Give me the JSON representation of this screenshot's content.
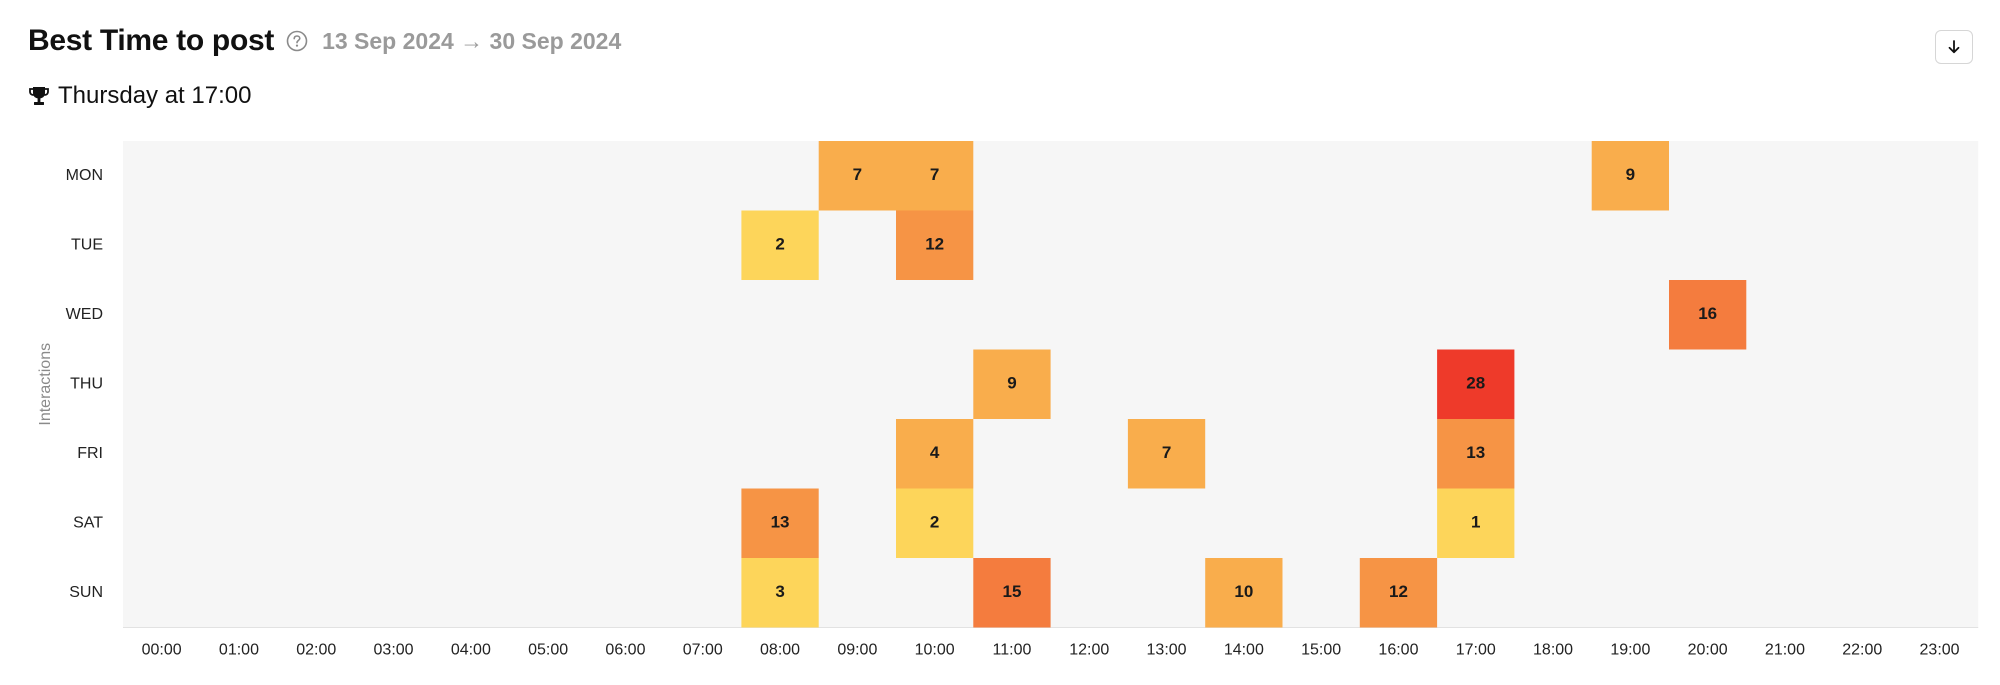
{
  "header": {
    "title": "Best Time to post",
    "date_range": "13 Sep 2024 → 30 Sep 2024"
  },
  "best_time": {
    "label": "Thursday at 17:00"
  },
  "icons": {
    "help": "question-circle-icon",
    "trophy": "trophy-icon",
    "download": "arrow-down-icon"
  },
  "colors": {
    "background": "#f6f6f6",
    "low": "#fdd55a",
    "mid": "#f9ad4c",
    "high": "#f47c3e",
    "max": "#ee3a2a"
  },
  "chart_data": {
    "type": "heatmap",
    "ylabel": "Interactions",
    "xlabel": "",
    "days": [
      "MON",
      "TUE",
      "WED",
      "THU",
      "FRI",
      "SAT",
      "SUN"
    ],
    "hours": [
      "00:00",
      "01:00",
      "02:00",
      "03:00",
      "04:00",
      "05:00",
      "06:00",
      "07:00",
      "08:00",
      "09:00",
      "10:00",
      "11:00",
      "12:00",
      "13:00",
      "14:00",
      "15:00",
      "16:00",
      "17:00",
      "18:00",
      "19:00",
      "20:00",
      "21:00",
      "22:00",
      "23:00"
    ],
    "cells": [
      {
        "day": "MON",
        "hour": "09:00",
        "value": 7
      },
      {
        "day": "MON",
        "hour": "10:00",
        "value": 7
      },
      {
        "day": "MON",
        "hour": "19:00",
        "value": 9
      },
      {
        "day": "TUE",
        "hour": "08:00",
        "value": 2
      },
      {
        "day": "TUE",
        "hour": "10:00",
        "value": 12
      },
      {
        "day": "WED",
        "hour": "20:00",
        "value": 16
      },
      {
        "day": "THU",
        "hour": "11:00",
        "value": 9
      },
      {
        "day": "THU",
        "hour": "17:00",
        "value": 28
      },
      {
        "day": "FRI",
        "hour": "10:00",
        "value": 4
      },
      {
        "day": "FRI",
        "hour": "13:00",
        "value": 7
      },
      {
        "day": "FRI",
        "hour": "17:00",
        "value": 13
      },
      {
        "day": "SAT",
        "hour": "08:00",
        "value": 13
      },
      {
        "day": "SAT",
        "hour": "10:00",
        "value": 2
      },
      {
        "day": "SAT",
        "hour": "17:00",
        "value": 1
      },
      {
        "day": "SUN",
        "hour": "08:00",
        "value": 3
      },
      {
        "day": "SUN",
        "hour": "11:00",
        "value": 15
      },
      {
        "day": "SUN",
        "hour": "14:00",
        "value": 10
      },
      {
        "day": "SUN",
        "hour": "16:00",
        "value": 12
      }
    ]
  }
}
